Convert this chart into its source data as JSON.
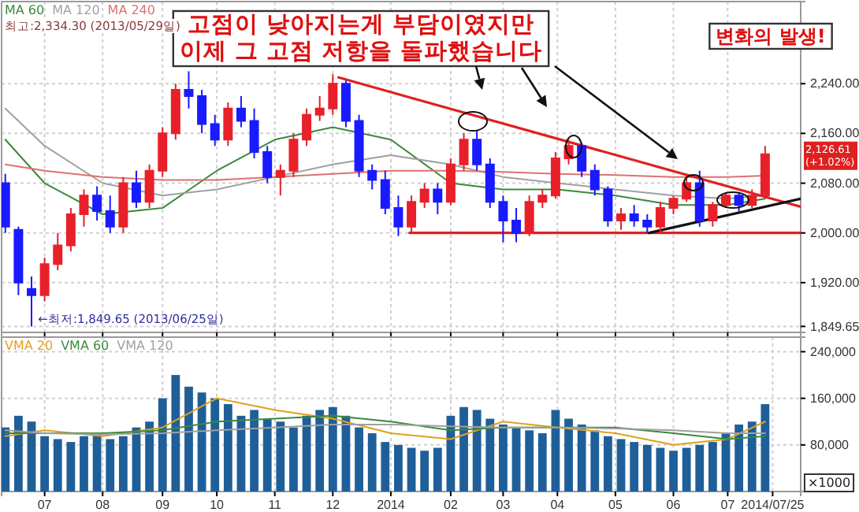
{
  "chart_data": [
    {
      "type": "candlestick",
      "x": [
        "2013-06-10",
        "2013-06-17",
        "2013-06-24",
        "2013-07-01",
        "2013-07-08",
        "2013-07-15",
        "2013-07-22",
        "2013-07-29",
        "2013-08-05",
        "2013-08-12",
        "2013-08-19",
        "2013-08-26",
        "2013-09-02",
        "2013-09-09",
        "2013-09-16",
        "2013-09-23",
        "2013-09-30",
        "2013-10-07",
        "2013-10-14",
        "2013-10-21",
        "2013-10-28",
        "2013-11-04",
        "2013-11-11",
        "2013-11-18",
        "2013-11-25",
        "2013-12-02",
        "2013-12-09",
        "2013-12-16",
        "2013-12-23",
        "2013-12-30",
        "2014-01-06",
        "2014-01-13",
        "2014-01-20",
        "2014-01-27",
        "2014-02-03",
        "2014-02-10",
        "2014-02-17",
        "2014-02-24",
        "2014-03-03",
        "2014-03-10",
        "2014-03-17",
        "2014-03-24",
        "2014-03-31",
        "2014-04-07",
        "2014-04-14",
        "2014-04-21",
        "2014-04-28",
        "2014-05-05",
        "2014-05-12",
        "2014-05-19",
        "2014-05-26",
        "2014-06-02",
        "2014-06-09",
        "2014-06-16",
        "2014-06-23",
        "2014-06-30",
        "2014-07-07",
        "2014-07-14",
        "2014-07-21"
      ],
      "ohlc": [
        [
          2080,
          2095,
          2000,
          2010
        ],
        [
          2005,
          2010,
          1900,
          1920
        ],
        [
          1910,
          1930,
          1849.65,
          1900
        ],
        [
          1900,
          1960,
          1890,
          1950
        ],
        [
          1950,
          2000,
          1940,
          1980
        ],
        [
          1980,
          2040,
          1970,
          2030
        ],
        [
          2030,
          2070,
          2010,
          2060
        ],
        [
          2060,
          2075,
          2020,
          2035
        ],
        [
          2035,
          2060,
          2000,
          2010
        ],
        [
          2010,
          2090,
          2000,
          2080
        ],
        [
          2080,
          2100,
          2040,
          2050
        ],
        [
          2050,
          2110,
          2040,
          2100
        ],
        [
          2100,
          2170,
          2090,
          2160
        ],
        [
          2160,
          2240,
          2150,
          2230
        ],
        [
          2230,
          2260,
          2200,
          2220
        ],
        [
          2220,
          2230,
          2160,
          2175
        ],
        [
          2175,
          2190,
          2140,
          2150
        ],
        [
          2150,
          2210,
          2140,
          2200
        ],
        [
          2200,
          2220,
          2170,
          2180
        ],
        [
          2180,
          2200,
          2120,
          2130
        ],
        [
          2130,
          2140,
          2080,
          2090
        ],
        [
          2090,
          2110,
          2060,
          2100
        ],
        [
          2100,
          2160,
          2090,
          2150
        ],
        [
          2150,
          2200,
          2140,
          2190
        ],
        [
          2190,
          2220,
          2180,
          2200
        ],
        [
          2200,
          2255,
          2190,
          2240
        ],
        [
          2240,
          2245,
          2170,
          2180
        ],
        [
          2180,
          2190,
          2090,
          2100
        ],
        [
          2100,
          2110,
          2070,
          2085
        ],
        [
          2085,
          2100,
          2030,
          2040
        ],
        [
          2040,
          2060,
          1995,
          2010
        ],
        [
          2010,
          2060,
          2000,
          2050
        ],
        [
          2050,
          2080,
          2040,
          2070
        ],
        [
          2070,
          2080,
          2030,
          2050
        ],
        [
          2050,
          2120,
          2045,
          2110
        ],
        [
          2110,
          2160,
          2100,
          2150
        ],
        [
          2150,
          2165,
          2100,
          2110
        ],
        [
          2110,
          2120,
          2040,
          2050
        ],
        [
          2050,
          2060,
          1985,
          2020
        ],
        [
          2020,
          2040,
          1985,
          2000
        ],
        [
          2000,
          2060,
          1995,
          2050
        ],
        [
          2050,
          2070,
          2040,
          2060
        ],
        [
          2060,
          2130,
          2055,
          2120
        ],
        [
          2120,
          2150,
          2110,
          2140
        ],
        [
          2140,
          2145,
          2090,
          2100
        ],
        [
          2100,
          2110,
          2060,
          2070
        ],
        [
          2070,
          2075,
          2010,
          2020
        ],
        [
          2020,
          2040,
          2005,
          2030
        ],
        [
          2030,
          2045,
          2010,
          2020
        ],
        [
          2020,
          2030,
          2000,
          2010
        ],
        [
          2010,
          2050,
          2000,
          2040
        ],
        [
          2040,
          2060,
          2030,
          2055
        ],
        [
          2055,
          2095,
          2050,
          2080
        ],
        [
          2080,
          2100,
          2010,
          2020
        ],
        [
          2020,
          2050,
          2010,
          2045
        ],
        [
          2045,
          2065,
          2040,
          2060
        ],
        [
          2060,
          2065,
          2035,
          2045
        ],
        [
          2045,
          2070,
          2040,
          2060
        ],
        [
          2060,
          2140,
          2055,
          2126.61
        ]
      ],
      "colors": [
        "#1a1aff",
        "#1a1aff",
        "#1a1aff",
        "#e8202a",
        "#e8202a",
        "#e8202a",
        "#e8202a",
        "#1a1aff",
        "#1a1aff",
        "#e8202a",
        "#1a1aff",
        "#e8202a",
        "#e8202a",
        "#e8202a",
        "#1a1aff",
        "#1a1aff",
        "#1a1aff",
        "#e8202a",
        "#1a1aff",
        "#1a1aff",
        "#1a1aff",
        "#e8202a",
        "#e8202a",
        "#e8202a",
        "#e8202a",
        "#e8202a",
        "#1a1aff",
        "#1a1aff",
        "#1a1aff",
        "#1a1aff",
        "#1a1aff",
        "#e8202a",
        "#e8202a",
        "#1a1aff",
        "#e8202a",
        "#e8202a",
        "#1a1aff",
        "#1a1aff",
        "#1a1aff",
        "#1a1aff",
        "#e8202a",
        "#e8202a",
        "#e8202a",
        "#e8202a",
        "#1a1aff",
        "#1a1aff",
        "#1a1aff",
        "#e8202a",
        "#1a1aff",
        "#1a1aff",
        "#e8202a",
        "#e8202a",
        "#e8202a",
        "#1a1aff",
        "#e8202a",
        "#e8202a",
        "#1a1aff",
        "#e8202a",
        "#e8202a"
      ],
      "series": [
        {
          "name": "MA 60",
          "type": "line",
          "color": "#3a8a3a",
          "x": [
            "2013-06-10",
            "2013-07-01",
            "2013-08-01",
            "2013-09-02",
            "2013-10-01",
            "2013-11-01",
            "2013-12-02",
            "2014-01-02",
            "2014-02-03",
            "2014-03-03",
            "2014-04-01",
            "2014-05-02",
            "2014-06-02",
            "2014-07-01",
            "2014-07-21"
          ],
          "values": [
            2150,
            2080,
            2030,
            2040,
            2100,
            2150,
            2170,
            2150,
            2080,
            2070,
            2070,
            2060,
            2045,
            2045,
            2055
          ]
        },
        {
          "name": "MA 120",
          "type": "line",
          "color": "#a0a0a0",
          "x": [
            "2013-06-10",
            "2013-07-01",
            "2013-08-01",
            "2013-09-02",
            "2013-10-01",
            "2013-11-01",
            "2013-12-02",
            "2014-01-02",
            "2014-02-03",
            "2014-03-03",
            "2014-04-01",
            "2014-05-02",
            "2014-06-02",
            "2014-07-01",
            "2014-07-21"
          ],
          "values": [
            2200,
            2140,
            2080,
            2060,
            2070,
            2090,
            2110,
            2125,
            2110,
            2090,
            2080,
            2070,
            2060,
            2055,
            2060
          ]
        },
        {
          "name": "MA 240",
          "type": "line",
          "color": "#e07070",
          "x": [
            "2013-06-10",
            "2013-07-01",
            "2013-08-01",
            "2013-09-02",
            "2013-10-01",
            "2013-11-01",
            "2013-12-02",
            "2014-01-02",
            "2014-02-03",
            "2014-03-03",
            "2014-04-01",
            "2014-05-02",
            "2014-06-02",
            "2014-07-01",
            "2014-07-21"
          ],
          "values": [
            2110,
            2100,
            2090,
            2085,
            2085,
            2090,
            2095,
            2100,
            2100,
            2098,
            2095,
            2093,
            2090,
            2090,
            2092
          ]
        },
        {
          "type": "line",
          "color": "#e02020",
          "x": [
            "2013-12-05",
            "2014-08-09"
          ],
          "values": [
            2250,
            2042
          ]
        },
        {
          "type": "line",
          "color": "#e02020",
          "x": [
            "2014-01-12",
            "2014-08-09"
          ],
          "values": [
            2000,
            2000
          ]
        },
        {
          "type": "line",
          "color": "#111111",
          "x": [
            "2014-05-20",
            "2014-08-09"
          ],
          "values": [
            2000,
            2055
          ]
        }
      ],
      "xlim": [
        "2013-06-08",
        "2014-08-09"
      ],
      "ylim": [
        1840,
        2372
      ],
      "xticks": [
        {
          "value": "2013-07-01",
          "label": null
        },
        {
          "value": "2013-08-01",
          "label": null
        },
        {
          "value": "2013-09-02",
          "label": null
        },
        {
          "value": "2013-10-01",
          "label": null
        },
        {
          "value": "2013-11-01",
          "label": null
        },
        {
          "value": "2013-12-02",
          "label": null
        },
        {
          "value": "2014-01-02",
          "label": null
        },
        {
          "value": "2014-02-03",
          "label": null
        },
        {
          "value": "2014-03-03",
          "label": null
        },
        {
          "value": "2014-04-01",
          "label": null
        },
        {
          "value": "2014-05-02",
          "label": null
        },
        {
          "value": "2014-06-02",
          "label": null
        },
        {
          "value": "2014-07-01",
          "label": null
        }
      ],
      "yticks": [
        {
          "value": 1849.65,
          "label": "1,849.65"
        },
        {
          "value": 1920,
          "label": "1,920.00"
        },
        {
          "value": 2000,
          "label": "2,000.00"
        },
        {
          "value": 2080,
          "label": "2,080.00"
        },
        {
          "value": 2160,
          "label": "2,160.00"
        },
        {
          "value": 2240,
          "label": "2,240.00"
        }
      ],
      "tick_labels": "y",
      "grid": true,
      "legend": "top left",
      "annotations": [
        "고점이 낮아지는게 부담이였지만\n이제 그 고점 저항을 돌파했습니다",
        "변화의 발생!",
        "최고:2,334.30 (2013/05/29일)",
        {
          "text": "←최저:1,849.65 (2013/06/25일)",
          "x": "2013-06-25",
          "y": 1849.65
        },
        "2,126.61\n(+1.02%)"
      ]
    },
    {
      "type": "bar",
      "x": [
        "2013-06-10",
        "2013-06-17",
        "2013-06-24",
        "2013-07-01",
        "2013-07-08",
        "2013-07-15",
        "2013-07-22",
        "2013-07-29",
        "2013-08-05",
        "2013-08-12",
        "2013-08-19",
        "2013-08-26",
        "2013-09-02",
        "2013-09-09",
        "2013-09-16",
        "2013-09-23",
        "2013-09-30",
        "2013-10-07",
        "2013-10-14",
        "2013-10-21",
        "2013-10-28",
        "2013-11-04",
        "2013-11-11",
        "2013-11-18",
        "2013-11-25",
        "2013-12-02",
        "2013-12-09",
        "2013-12-16",
        "2013-12-23",
        "2013-12-30",
        "2014-01-06",
        "2014-01-13",
        "2014-01-20",
        "2014-01-27",
        "2014-02-03",
        "2014-02-10",
        "2014-02-17",
        "2014-02-24",
        "2014-03-03",
        "2014-03-10",
        "2014-03-17",
        "2014-03-24",
        "2014-03-31",
        "2014-04-07",
        "2014-04-14",
        "2014-04-21",
        "2014-04-28",
        "2014-05-05",
        "2014-05-12",
        "2014-05-19",
        "2014-05-26",
        "2014-06-02",
        "2014-06-09",
        "2014-06-16",
        "2014-06-23",
        "2014-06-30",
        "2014-07-07",
        "2014-07-14",
        "2014-07-21"
      ],
      "series": [
        {
          "type": "bar",
          "color": "#1f5f99",
          "values": [
            110000,
            130000,
            120000,
            95000,
            90000,
            85000,
            95000,
            100000,
            90000,
            95000,
            110000,
            120000,
            160000,
            200000,
            180000,
            170000,
            160000,
            150000,
            130000,
            140000,
            125000,
            120000,
            110000,
            130000,
            140000,
            145000,
            130000,
            110000,
            100000,
            85000,
            80000,
            75000,
            70000,
            75000,
            130000,
            145000,
            140000,
            125000,
            115000,
            110000,
            105000,
            100000,
            140000,
            125000,
            115000,
            105000,
            95000,
            90000,
            85000,
            80000,
            75000,
            70000,
            75000,
            80000,
            85000,
            100000,
            115000,
            120000,
            150000
          ]
        },
        {
          "name": "VMA 20",
          "type": "line",
          "color": "#e0a020",
          "x": [
            "2013-06-10",
            "2013-07-01",
            "2013-08-01",
            "2013-09-02",
            "2013-10-01",
            "2013-11-01",
            "2013-12-02",
            "2014-01-02",
            "2014-02-03",
            "2014-03-03",
            "2014-04-01",
            "2014-05-02",
            "2014-06-02",
            "2014-07-01",
            "2014-07-21"
          ],
          "values": [
            95000,
            105000,
            95000,
            110000,
            160000,
            140000,
            125000,
            100000,
            90000,
            120000,
            110000,
            100000,
            80000,
            90000,
            120000
          ]
        },
        {
          "name": "VMA 60",
          "type": "line",
          "color": "#3a8a3a",
          "x": [
            "2013-06-10",
            "2013-07-01",
            "2013-08-01",
            "2013-09-02",
            "2013-10-01",
            "2013-11-01",
            "2013-12-02",
            "2014-01-02",
            "2014-02-03",
            "2014-03-03",
            "2014-04-01",
            "2014-05-02",
            "2014-06-02",
            "2014-07-01",
            "2014-07-21"
          ],
          "values": [
            100000,
            100000,
            100000,
            105000,
            120000,
            125000,
            130000,
            120000,
            105000,
            110000,
            110000,
            110000,
            100000,
            90000,
            95000
          ]
        },
        {
          "name": "VMA 120",
          "type": "line",
          "color": "#a0a0a0",
          "x": [
            "2013-06-10",
            "2013-07-01",
            "2013-08-01",
            "2013-09-02",
            "2013-10-01",
            "2013-11-01",
            "2013-12-02",
            "2014-01-02",
            "2014-02-03",
            "2014-03-03",
            "2014-04-01",
            "2014-05-02",
            "2014-06-02",
            "2014-07-01",
            "2014-07-21"
          ],
          "values": [
            105000,
            100000,
            98000,
            100000,
            105000,
            110000,
            115000,
            115000,
            112000,
            110000,
            110000,
            108000,
            105000,
            100000,
            100000
          ]
        }
      ],
      "xlim": [
        "2013-06-08",
        "2014-08-09"
      ],
      "ylim": [
        0,
        265000
      ],
      "xticks": [
        {
          "value": "2013-07-01",
          "label": "07"
        },
        {
          "value": "2013-08-01",
          "label": "08"
        },
        {
          "value": "2013-09-02",
          "label": "09"
        },
        {
          "value": "2013-10-01",
          "label": "10"
        },
        {
          "value": "2013-11-01",
          "label": "11"
        },
        {
          "value": "2013-12-02",
          "label": "12"
        },
        {
          "value": "2014-01-02",
          "label": "2014"
        },
        {
          "value": "2014-02-03",
          "label": "02"
        },
        {
          "value": "2014-03-03",
          "label": "03"
        },
        {
          "value": "2014-04-01",
          "label": "04"
        },
        {
          "value": "2014-05-02",
          "label": "05"
        },
        {
          "value": "2014-06-02",
          "label": "06"
        },
        {
          "value": "2014-07-01",
          "label": "07"
        },
        {
          "value": "2014-07-25",
          "label": "2014/07/25"
        }
      ],
      "yticks": [
        {
          "value": 80000,
          "label": "80,000"
        },
        {
          "value": 160000,
          "label": "160,000"
        },
        {
          "value": 240000,
          "label": "240,000"
        }
      ],
      "grid": true,
      "legend": "top left",
      "annotations": [
        "×1000"
      ]
    }
  ]
}
